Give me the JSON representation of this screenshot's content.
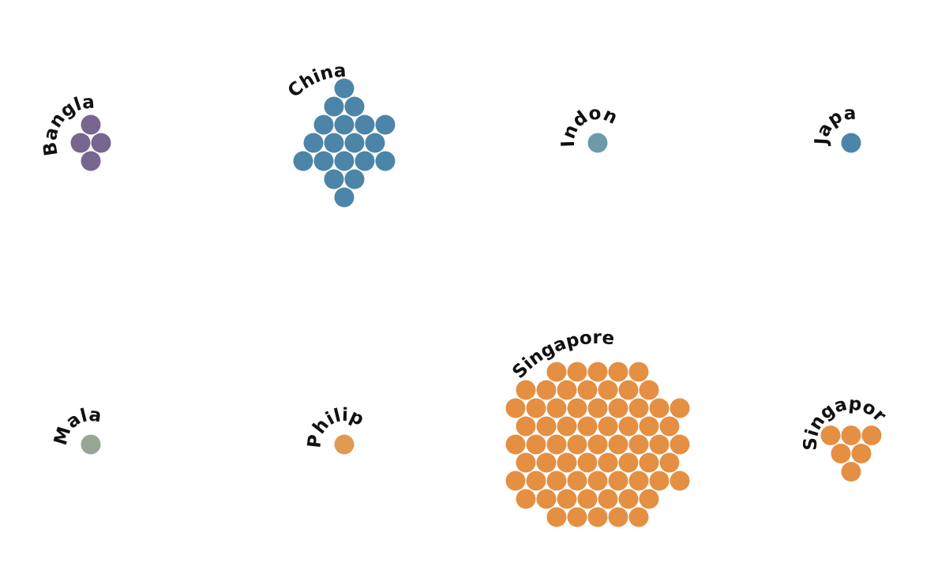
{
  "chart_data": {
    "type": "packed-circles",
    "groups": [
      {
        "name": "Bangladesh",
        "label": "Bangladesh",
        "count_text": "(4)",
        "value": 4,
        "color": "#77668f"
      },
      {
        "name": "China",
        "label": "China",
        "count_text": "(19)",
        "value": 19,
        "color": "#4c85a7"
      },
      {
        "name": "Indonesia",
        "label": "Indonesia",
        "count_text": "(1)",
        "value": 1,
        "color": "#6d9aaa"
      },
      {
        "name": "Japan",
        "label": "Japan",
        "count_text": "(1)",
        "value": 1,
        "color": "#4c85a7"
      },
      {
        "name": "Malaysia",
        "label": "Malaysia",
        "count_text": "(1)",
        "value": 1,
        "color": "#9aa695"
      },
      {
        "name": "Philippines",
        "label": "Philippines",
        "count_text": "(1)",
        "value": 1,
        "color": "#e19a52"
      },
      {
        "name": "Singapore",
        "label": "Singapore",
        "count_text": "(67)",
        "value": 67,
        "color": "#e58f43"
      },
      {
        "name": "Singapore PR",
        "label": "Singapore PR",
        "count_text": "(6)",
        "value": 6,
        "color": "#e58f43"
      }
    ]
  }
}
